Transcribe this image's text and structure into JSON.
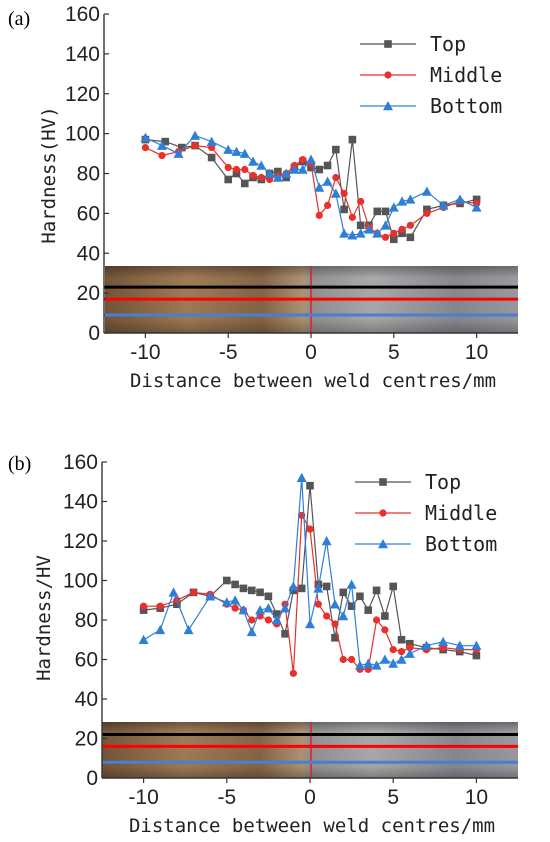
{
  "chart_data": [
    {
      "panel_label": "(a)",
      "type": "line",
      "xlabel": "Distance between weld centres/mm",
      "ylabel": "Hardness(HV)",
      "xlim": [
        -12.5,
        12.5
      ],
      "ylim": [
        0,
        160
      ],
      "x_ticks": [
        -10,
        -5,
        0,
        5,
        10
      ],
      "y_ticks": [
        0,
        20,
        40,
        60,
        80,
        100,
        120,
        140,
        160
      ],
      "grid": false,
      "legend_position": "top-right",
      "weld_image_y_range": [
        0,
        40
      ],
      "overlay_lines": [
        {
          "y": 23,
          "color": "#000000"
        },
        {
          "y": 17,
          "color": "#ff0000"
        },
        {
          "y": 9,
          "color": "#4a7fd0"
        }
      ],
      "series": [
        {
          "name": "Top",
          "color": "#555555",
          "marker": "square",
          "x": [
            -10,
            -8.8,
            -7.8,
            -7,
            -6,
            -5,
            -4.5,
            -4,
            -3.5,
            -3,
            -2.5,
            -2,
            -1.5,
            -1,
            -0.5,
            0,
            0.5,
            1,
            1.5,
            2,
            2.5,
            3,
            3.5,
            4,
            4.5,
            5,
            5.5,
            6,
            7,
            8,
            9,
            10
          ],
          "y": [
            97,
            96,
            93,
            94,
            88,
            77,
            80,
            75,
            78,
            77,
            80,
            81,
            78,
            83,
            86,
            83,
            82,
            84,
            92,
            62,
            97,
            54,
            54,
            61,
            61,
            47,
            50,
            48,
            62,
            64,
            65,
            67
          ]
        },
        {
          "name": "Middle",
          "color": "#e8302c",
          "marker": "circle",
          "x": [
            -10,
            -9,
            -8,
            -7,
            -6,
            -5,
            -4.5,
            -4,
            -3.5,
            -3,
            -2.5,
            -2,
            -1.5,
            -1,
            -0.5,
            0,
            0.5,
            1,
            1.5,
            2,
            2.5,
            3,
            3.5,
            4,
            4.5,
            5,
            5.5,
            6,
            7,
            8,
            9,
            10
          ],
          "y": [
            93,
            89,
            91,
            94,
            93,
            83,
            82,
            82,
            79,
            78,
            77,
            79,
            80,
            84,
            87,
            85,
            59,
            64,
            78,
            70,
            58,
            66,
            53,
            50,
            48,
            50,
            52,
            54,
            60,
            63,
            66,
            65
          ]
        },
        {
          "name": "Bottom",
          "color": "#2f7fd8",
          "marker": "triangle",
          "x": [
            -10,
            -9,
            -8,
            -7,
            -6,
            -5,
            -4.5,
            -4,
            -3.5,
            -3,
            -2.5,
            -2,
            -1.5,
            -1,
            -0.5,
            0,
            0.5,
            1,
            1.5,
            2,
            2.5,
            3,
            3.5,
            4,
            4.5,
            5,
            5.5,
            6,
            7,
            8,
            9,
            10
          ],
          "y": [
            98,
            94,
            90,
            99,
            96,
            92,
            91,
            90,
            86,
            84,
            80,
            78,
            80,
            82,
            82,
            87,
            73,
            76,
            70,
            50,
            49,
            50,
            52,
            50,
            54,
            63,
            66,
            67,
            71,
            64,
            67,
            63
          ]
        }
      ]
    },
    {
      "panel_label": "(b)",
      "type": "line",
      "xlabel": "Distance between weld centres/mm",
      "ylabel": "Hardness/HV",
      "xlim": [
        -12.5,
        12.5
      ],
      "ylim": [
        0,
        160
      ],
      "x_ticks": [
        -10,
        -5,
        0,
        5,
        10
      ],
      "y_ticks": [
        0,
        20,
        40,
        60,
        80,
        100,
        120,
        140,
        160
      ],
      "grid": false,
      "legend_position": "top-right",
      "weld_image_y_range": [
        0,
        30
      ],
      "overlay_lines": [
        {
          "y": 22,
          "color": "#000000"
        },
        {
          "y": 16,
          "color": "#ff0000"
        },
        {
          "y": 8,
          "color": "#4a7fd0"
        }
      ],
      "series": [
        {
          "name": "Top",
          "color": "#555555",
          "marker": "square",
          "x": [
            -10,
            -9,
            -8,
            -7,
            -6,
            -5,
            -4.5,
            -4,
            -3.5,
            -3,
            -2.5,
            -2,
            -1.5,
            -1,
            -0.5,
            0,
            0.5,
            1,
            1.5,
            2,
            2.5,
            3,
            3.5,
            4,
            4.5,
            5,
            5.5,
            6,
            7,
            8,
            9,
            10
          ],
          "y": [
            85,
            86,
            88,
            94,
            92,
            100,
            98,
            96,
            95,
            94,
            92,
            83,
            73,
            95,
            96,
            148,
            98,
            97,
            71,
            94,
            87,
            92,
            85,
            95,
            82,
            97,
            70,
            68,
            66,
            65,
            64,
            62
          ]
        },
        {
          "name": "Middle",
          "color": "#e8302c",
          "marker": "circle",
          "x": [
            -10,
            -9,
            -8,
            -7,
            -6,
            -5,
            -4.5,
            -4,
            -3.5,
            -3,
            -2.5,
            -2,
            -1.5,
            -1,
            -0.5,
            0,
            0.5,
            1,
            1.5,
            2,
            2.5,
            3,
            3.5,
            4,
            4.5,
            5,
            5.5,
            6,
            7,
            8,
            9,
            10
          ],
          "y": [
            87,
            87,
            90,
            94,
            93,
            88,
            86,
            85,
            80,
            82,
            80,
            78,
            88,
            53,
            133,
            126,
            88,
            82,
            78,
            60,
            60,
            55,
            55,
            80,
            75,
            65,
            64,
            66,
            65,
            66,
            65,
            65
          ]
        },
        {
          "name": "Bottom",
          "color": "#2f7fd8",
          "marker": "triangle",
          "x": [
            -10,
            -9,
            -8.2,
            -7.3,
            -6,
            -5,
            -4.5,
            -4,
            -3.5,
            -3,
            -2.5,
            -2,
            -1.5,
            -1,
            -0.5,
            0,
            0.5,
            1,
            1.5,
            2,
            2.5,
            3,
            3.5,
            4,
            4.5,
            5,
            5.5,
            6,
            7,
            8,
            9,
            10
          ],
          "y": [
            70,
            75,
            94,
            75,
            92,
            89,
            90,
            85,
            74,
            85,
            86,
            80,
            86,
            97,
            152,
            78,
            96,
            120,
            88,
            82,
            98,
            57,
            58,
            57,
            60,
            58,
            60,
            63,
            67,
            69,
            67,
            67
          ]
        }
      ]
    }
  ]
}
